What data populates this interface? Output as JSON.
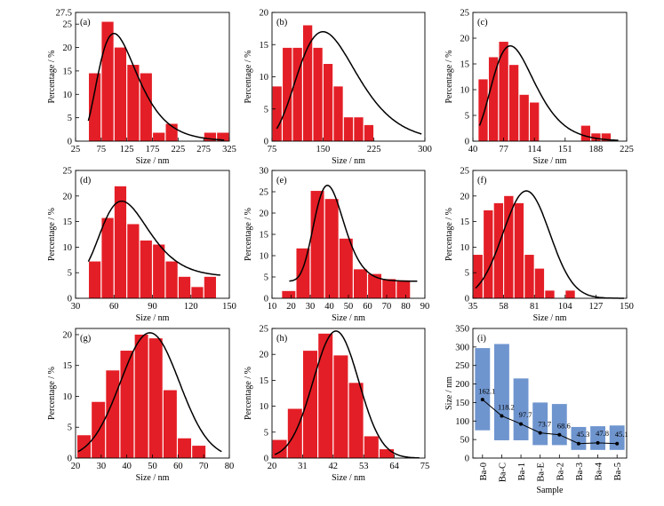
{
  "colors": {
    "bar": "#e41e26",
    "box": "#6f95cf",
    "curve": "#000000",
    "axis": "#000000"
  },
  "chart_data": [
    {
      "type": "bar",
      "panel_label": "(a)",
      "xlabel": "Size / nm",
      "ylabel": "Percentage / %",
      "xlim": [
        25,
        325
      ],
      "ylim": [
        0,
        27.5
      ],
      "xticks": [
        25,
        75,
        125,
        175,
        225,
        275,
        325
      ],
      "yticks": [
        0,
        5,
        10,
        15,
        20,
        25,
        27.5
      ],
      "bar_width": 25,
      "bin_centers": [
        62.5,
        87.5,
        112.5,
        137.5,
        162.5,
        187.5,
        212.5,
        237.5,
        262.5,
        287.5,
        312.5
      ],
      "values": [
        14.5,
        25.5,
        20.0,
        16.3,
        14.5,
        1.8,
        3.7,
        0,
        0,
        1.8,
        1.8
      ],
      "fit_curve": {
        "type": "lognormal",
        "peak_x": 100,
        "peak_y": 23,
        "x_range": [
          50,
          315
        ],
        "sigma": 0.38
      }
    },
    {
      "type": "bar",
      "panel_label": "(b)",
      "xlabel": "Size / nm",
      "ylabel": "Percentage / %",
      "xlim": [
        75,
        300
      ],
      "ylim": [
        0,
        20
      ],
      "xticks": [
        75,
        150,
        225,
        300
      ],
      "yticks": [
        0,
        5,
        10,
        15,
        20
      ],
      "bar_width": 15,
      "bin_centers": [
        82.5,
        97.5,
        112.5,
        127.5,
        142.5,
        157.5,
        172.5,
        187.5,
        202.5,
        217.5,
        232.5,
        247.5,
        262.5,
        277.5,
        292.5
      ],
      "values": [
        8.5,
        14.5,
        14.5,
        18.0,
        14.5,
        12.0,
        8.5,
        3.7,
        3.7,
        2.5,
        0,
        0,
        0,
        0,
        0
      ],
      "fit_curve": {
        "type": "lognormal",
        "peak_x": 150,
        "peak_y": 17,
        "x_range": [
          82,
          295
        ],
        "sigma": 0.29
      }
    },
    {
      "type": "bar",
      "panel_label": "(c)",
      "xlabel": "Size / nm",
      "ylabel": "Percentage / %",
      "xlim": [
        40,
        225
      ],
      "ylim": [
        0,
        25
      ],
      "xticks": [
        40,
        77,
        114,
        151,
        188,
        225
      ],
      "yticks": [
        0,
        5,
        10,
        15,
        20,
        25
      ],
      "bar_width": 12.3,
      "bin_centers": [
        52.3,
        64.7,
        77.0,
        89.3,
        101.7,
        114.0,
        126.3,
        138.7,
        151.0,
        163.3,
        175.7,
        188.0,
        200.3,
        212.7
      ],
      "values": [
        12.0,
        16.3,
        19.3,
        14.8,
        9.0,
        7.5,
        0,
        0,
        0,
        0,
        3.0,
        1.5,
        1.5,
        0
      ],
      "fit_curve": {
        "type": "lognormal",
        "peak_x": 85,
        "peak_y": 18.5,
        "x_range": [
          48,
          215
        ],
        "sigma": 0.3
      }
    },
    {
      "type": "bar",
      "panel_label": "(d)",
      "xlabel": "Size / nm",
      "ylabel": "Percentage / %",
      "xlim": [
        30,
        150
      ],
      "ylim": [
        0,
        25
      ],
      "xticks": [
        30,
        60,
        90,
        120,
        150
      ],
      "yticks": [
        0,
        5,
        10,
        15,
        20,
        25
      ],
      "bar_width": 10,
      "bin_centers": [
        45,
        55,
        65,
        75,
        85,
        95,
        105,
        115,
        125,
        135,
        145
      ],
      "values": [
        7.2,
        15.7,
        21.9,
        14.5,
        11.3,
        10.5,
        7.2,
        4.2,
        2.2,
        4.2,
        0
      ],
      "fit_curve": {
        "type": "lognormal_offset",
        "peak_x": 66,
        "peak_y": 19,
        "offset": 4.2,
        "x_range": [
          40,
          143
        ],
        "sigma": 0.28
      }
    },
    {
      "type": "bar",
      "panel_label": "(e)",
      "xlabel": "Size / nm",
      "ylabel": "Percentage / %",
      "xlim": [
        10,
        90
      ],
      "ylim": [
        0,
        30
      ],
      "xticks": [
        10,
        20,
        30,
        40,
        50,
        60,
        70,
        80,
        90
      ],
      "yticks": [
        0,
        5,
        10,
        15,
        20,
        25,
        30
      ],
      "bar_width": 7.5,
      "bin_centers": [
        18.75,
        26.25,
        33.75,
        41.25,
        48.75,
        56.25,
        63.75,
        71.25,
        78.75,
        86.25
      ],
      "values": [
        1.7,
        11.7,
        25.2,
        23.3,
        14.0,
        6.8,
        5.7,
        4.5,
        4.2,
        0
      ],
      "fit_curve": {
        "type": "lognormal_offset",
        "peak_x": 39,
        "peak_y": 26.5,
        "offset": 4.0,
        "x_range": [
          19,
          86
        ],
        "sigma": 0.2
      }
    },
    {
      "type": "bar",
      "panel_label": "(f)",
      "xlabel": "Size / nm",
      "ylabel": "Percentage / %",
      "xlim": [
        35,
        150
      ],
      "ylim": [
        0,
        25
      ],
      "xticks": [
        35,
        58,
        81,
        104,
        127,
        150
      ],
      "yticks": [
        0,
        5,
        10,
        15,
        20,
        25
      ],
      "bar_width": 7.67,
      "bin_centers": [
        38.8,
        46.5,
        54.2,
        61.8,
        69.5,
        77.2,
        84.8,
        92.5,
        100.2,
        107.8,
        115.5,
        123.2,
        130.8,
        138.5,
        146.2
      ],
      "values": [
        8.5,
        17.2,
        18.6,
        20.0,
        18.6,
        8.5,
        5.8,
        1.5,
        0,
        1.5,
        0,
        0,
        0,
        0,
        0
      ],
      "fit_curve": {
        "type": "gaussian",
        "peak_x": 75,
        "peak_y": 21,
        "x_range": [
          37,
          148
        ],
        "sigma": 17.5
      }
    },
    {
      "type": "bar",
      "panel_label": "(g)",
      "xlabel": "Size / nm",
      "ylabel": "Percentage / %",
      "xlim": [
        20,
        80
      ],
      "ylim": [
        0,
        21
      ],
      "xticks": [
        20,
        30,
        40,
        50,
        60,
        70,
        80
      ],
      "yticks": [
        0,
        5,
        10,
        15,
        20
      ],
      "bar_width": 5.6,
      "bin_centers": [
        23.3,
        28.9,
        34.5,
        40.1,
        45.7,
        51.3,
        56.9,
        62.5,
        68.1,
        73.7,
        79.3
      ],
      "values": [
        3.7,
        9.1,
        14.2,
        17.4,
        20.0,
        19.4,
        11.0,
        3.2,
        2.0,
        0,
        0
      ],
      "fit_curve": {
        "type": "gaussian",
        "peak_x": 49,
        "peak_y": 20.3,
        "x_range": [
          21,
          77
        ],
        "sigma": 11.5
      }
    },
    {
      "type": "bar",
      "panel_label": "(h)",
      "xlabel": "Size / nm",
      "ylabel": "Percentage / %",
      "xlim": [
        20,
        75
      ],
      "ylim": [
        0,
        25
      ],
      "xticks": [
        20,
        31,
        42,
        53,
        64,
        75
      ],
      "yticks": [
        0,
        5,
        10,
        15,
        20,
        25
      ],
      "bar_width": 5.5,
      "bin_centers": [
        22.75,
        28.25,
        33.75,
        39.25,
        44.75,
        50.25,
        55.75,
        61.25,
        66.75,
        72.25
      ],
      "values": [
        3.5,
        9.5,
        20.7,
        24.0,
        19.8,
        14.5,
        4.2,
        1.7,
        0,
        0
      ],
      "fit_curve": {
        "type": "gaussian",
        "peak_x": 43,
        "peak_y": 24.5,
        "x_range": [
          21,
          73
        ],
        "sigma": 8.2
      }
    },
    {
      "type": "box_line",
      "panel_label": "(i)",
      "xlabel": "Sample",
      "ylabel": "Size / nm",
      "ylim": [
        0,
        350
      ],
      "yticks": [
        0,
        50,
        100,
        150,
        200,
        250,
        300,
        350
      ],
      "categories": [
        "Ba-0",
        "Ba-C",
        "Ba-1",
        "Ba-E",
        "Ba-2",
        "Ba-3",
        "Ba-4",
        "Ba-5"
      ],
      "box_ranges": [
        [
          75,
          297
        ],
        [
          48,
          308
        ],
        [
          48,
          215
        ],
        [
          35,
          150
        ],
        [
          35,
          146
        ],
        [
          22,
          84
        ],
        [
          22,
          86
        ],
        [
          22,
          88
        ]
      ],
      "mean_values": [
        162.1,
        118.2,
        97.7,
        73.7,
        68.6,
        45.3,
        47.8,
        45.1
      ],
      "line_values": [
        158,
        114,
        92,
        68,
        63,
        39,
        41,
        39
      ],
      "value_labels": [
        "162.1",
        "118.2",
        "97.7",
        "73.7",
        "68.6",
        "45.3",
        "47.8",
        "45.1"
      ]
    }
  ]
}
